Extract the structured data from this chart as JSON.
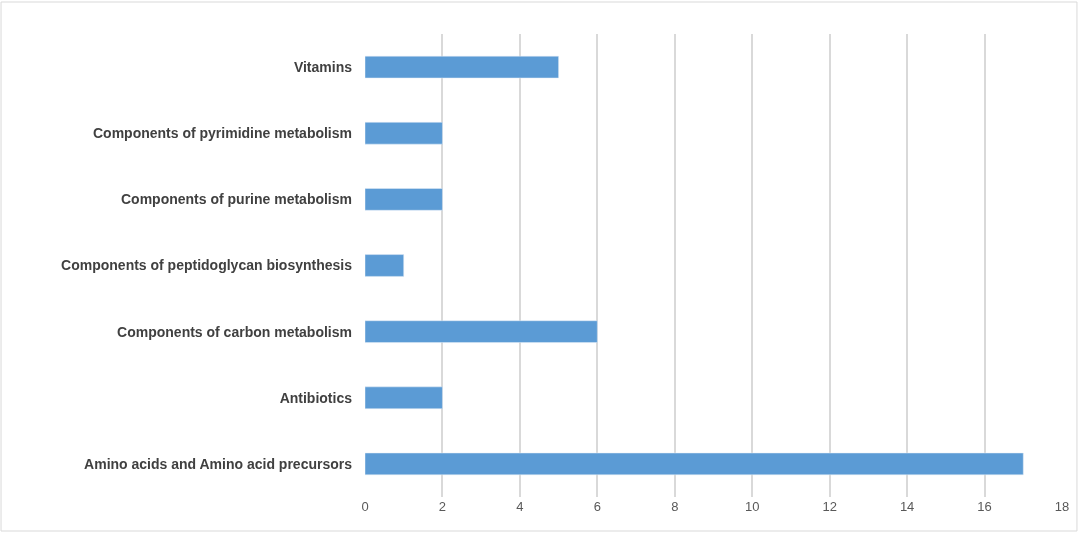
{
  "chart_data": {
    "type": "bar",
    "orientation": "horizontal",
    "categories": [
      "Vitamins",
      "Components of pyrimidine metabolism",
      "Components of purine metabolism",
      "Components of peptidoglycan biosynthesis",
      "Components of carbon metabolism",
      "Antibiotics",
      "Amino acids and Amino acid precursors"
    ],
    "values": [
      5,
      2,
      2,
      1,
      6,
      2,
      17
    ],
    "color": "#5b9bd5",
    "xlim": [
      0,
      18
    ],
    "xticks": [
      0,
      2,
      4,
      6,
      8,
      10,
      12,
      14,
      16,
      18
    ],
    "grid": "x"
  }
}
